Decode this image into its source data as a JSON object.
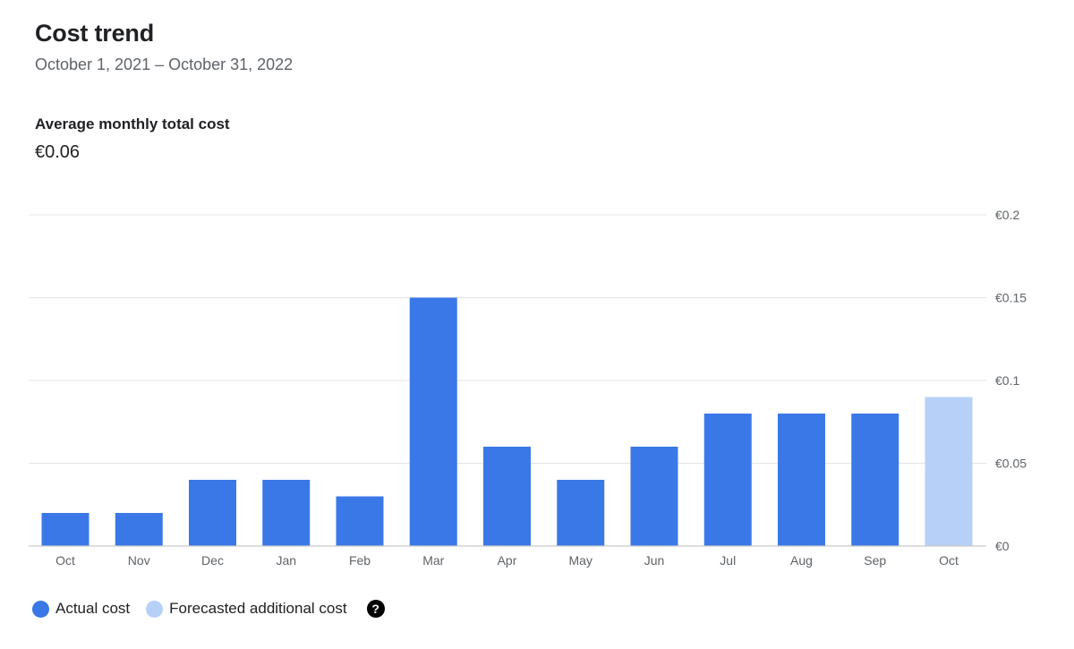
{
  "header": {
    "title": "Cost trend",
    "date_range": "October 1, 2021 – October 31, 2022"
  },
  "summary": {
    "label": "Average monthly total cost",
    "value": "€0.06"
  },
  "legend": {
    "actual_label": "Actual cost",
    "forecast_label": "Forecasted additional cost",
    "help_icon": "question-circle-icon"
  },
  "colors": {
    "actual": "#3b78e7",
    "forecast": "#b7d0f7",
    "grid": "#e3e3e3",
    "axis": "#c9c9c9",
    "tick_text": "#5f6368"
  },
  "chart_data": {
    "type": "bar",
    "title": "Cost trend",
    "categories": [
      "Oct",
      "Nov",
      "Dec",
      "Jan",
      "Feb",
      "Mar",
      "Apr",
      "May",
      "Jun",
      "Jul",
      "Aug",
      "Sep",
      "Oct"
    ],
    "series": [
      {
        "name": "Actual cost",
        "values": [
          0.02,
          0.02,
          0.04,
          0.04,
          0.03,
          0.15,
          0.06,
          0.04,
          0.06,
          0.08,
          0.08,
          0.08,
          0
        ]
      },
      {
        "name": "Forecasted additional cost",
        "values": [
          0,
          0,
          0,
          0,
          0,
          0,
          0,
          0,
          0,
          0,
          0,
          0,
          0.09
        ]
      }
    ],
    "yticks": [
      0,
      0.05,
      0.1,
      0.15,
      0.2
    ],
    "ytick_labels": [
      "€0",
      "€0.05",
      "€0.1",
      "€0.15",
      "€0.2"
    ],
    "ylim": [
      0,
      0.2
    ],
    "xlabel": "",
    "ylabel": "",
    "grid": true,
    "y_axis_position": "right",
    "legend_position": "bottom-left"
  }
}
